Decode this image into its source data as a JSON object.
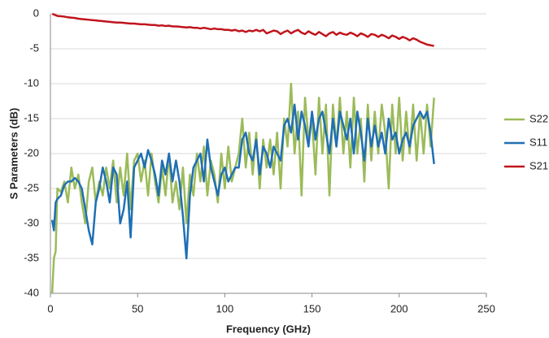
{
  "chart_data": {
    "type": "line",
    "xlabel": "Frequency (GHz)",
    "ylabel": "S Parameters (dB)",
    "x": [
      1,
      2,
      3,
      4,
      6,
      8,
      10,
      12,
      14,
      16,
      18,
      20,
      22,
      24,
      26,
      28,
      30,
      32,
      34,
      36,
      38,
      40,
      42,
      44,
      46,
      48,
      50,
      52,
      54,
      56,
      58,
      60,
      62,
      64,
      66,
      68,
      70,
      72,
      74,
      76,
      78,
      80,
      82,
      84,
      86,
      88,
      90,
      92,
      94,
      96,
      98,
      100,
      102,
      104,
      106,
      108,
      110,
      112,
      114,
      116,
      118,
      120,
      122,
      124,
      126,
      128,
      130,
      132,
      134,
      136,
      138,
      140,
      142,
      144,
      146,
      148,
      150,
      152,
      154,
      156,
      158,
      160,
      162,
      164,
      166,
      168,
      170,
      172,
      174,
      176,
      178,
      180,
      182,
      184,
      186,
      188,
      190,
      192,
      194,
      196,
      198,
      200,
      202,
      204,
      206,
      208,
      210,
      212,
      214,
      216,
      218,
      220
    ],
    "series": [
      {
        "name": "S22",
        "color": "#9bbb59",
        "values": [
          -40,
          -35,
          -34,
          -25,
          -25.5,
          -24,
          -27,
          -22,
          -25,
          -23,
          -27,
          -30,
          -24,
          -22,
          -27,
          -24,
          -26,
          -22,
          -25,
          -21,
          -27,
          -22,
          -26,
          -20,
          -28,
          -21,
          -20,
          -24,
          -21,
          -26,
          -20,
          -24,
          -27,
          -22,
          -26,
          -20,
          -27,
          -24,
          -28,
          -22,
          -30,
          -23,
          -26,
          -20,
          -24,
          -19,
          -26,
          -21,
          -23,
          -27,
          -20,
          -25,
          -19,
          -24,
          -22,
          -20,
          -15,
          -22,
          -17,
          -23,
          -17,
          -25,
          -18,
          -22,
          -18,
          -23,
          -17,
          -25,
          -15,
          -19,
          -10,
          -20,
          -14,
          -26,
          -12,
          -18,
          -15,
          -23,
          -12,
          -20,
          -13,
          -26,
          -13,
          -19,
          -12,
          -20,
          -14,
          -22,
          -12,
          -20,
          -15,
          -24,
          -13,
          -21,
          -14,
          -20,
          -13,
          -17,
          -25,
          -13,
          -20,
          -12,
          -21,
          -14,
          -20,
          -13,
          -21,
          -14,
          -20,
          -13,
          -19,
          -12
        ]
      },
      {
        "name": "S11",
        "color": "#1f6fb4",
        "values": [
          -29.5,
          -31,
          -27,
          -26.5,
          -26,
          -24.5,
          -24,
          -24,
          -23.5,
          -24,
          -25,
          -28,
          -31,
          -33,
          -27,
          -25,
          -22,
          -24,
          -27,
          -22,
          -23,
          -30,
          -28,
          -24,
          -32,
          -22,
          -21,
          -20,
          -22,
          -19.5,
          -21,
          -23,
          -26,
          -21,
          -23,
          -20,
          -24,
          -21,
          -24,
          -29,
          -35,
          -26,
          -22,
          -21,
          -20,
          -24,
          -18,
          -22,
          -24,
          -26,
          -23,
          -22,
          -24,
          -23,
          -22,
          -22,
          -18,
          -17,
          -20,
          -21,
          -18,
          -23,
          -19,
          -20,
          -22,
          -19,
          -20,
          -21,
          -16,
          -15,
          -17,
          -13,
          -18,
          -14,
          -16,
          -19,
          -14,
          -18,
          -15,
          -14,
          -17,
          -20,
          -15,
          -19,
          -14,
          -16,
          -18,
          -15,
          -20,
          -14,
          -17,
          -21,
          -15,
          -19,
          -16,
          -19,
          -17,
          -20,
          -15,
          -18,
          -17,
          -20,
          -18,
          -17,
          -19,
          -16,
          -15,
          -14,
          -15,
          -14,
          -17,
          -21.5
        ]
      },
      {
        "name": "S21",
        "color": "#c0141c",
        "values": [
          0,
          -0.1,
          -0.2,
          -0.3,
          -0.35,
          -0.4,
          -0.5,
          -0.55,
          -0.6,
          -0.7,
          -0.75,
          -0.8,
          -0.85,
          -0.9,
          -0.95,
          -1.0,
          -1.05,
          -1.1,
          -1.15,
          -1.2,
          -1.25,
          -1.25,
          -1.3,
          -1.35,
          -1.4,
          -1.4,
          -1.45,
          -1.5,
          -1.5,
          -1.55,
          -1.6,
          -1.6,
          -1.7,
          -1.65,
          -1.75,
          -1.7,
          -1.8,
          -1.8,
          -1.85,
          -1.9,
          -1.95,
          -1.9,
          -2.0,
          -2.0,
          -2.1,
          -2.0,
          -2.1,
          -2.2,
          -2.1,
          -2.2,
          -2.2,
          -2.3,
          -2.3,
          -2.4,
          -2.3,
          -2.5,
          -2.4,
          -2.6,
          -2.4,
          -2.5,
          -2.3,
          -2.5,
          -2.3,
          -2.8,
          -2.6,
          -2.4,
          -2.5,
          -2.9,
          -2.6,
          -2.4,
          -2.8,
          -2.5,
          -2.3,
          -2.7,
          -2.9,
          -2.5,
          -2.8,
          -3.0,
          -2.6,
          -2.9,
          -3.2,
          -2.8,
          -2.6,
          -3.0,
          -2.7,
          -2.9,
          -3.0,
          -2.7,
          -2.9,
          -3.2,
          -2.8,
          -3.0,
          -3.3,
          -2.9,
          -3.0,
          -3.3,
          -3.0,
          -3.2,
          -3.5,
          -3.1,
          -3.3,
          -3.6,
          -3.3,
          -3.5,
          -3.8,
          -3.5,
          -3.7,
          -4.0,
          -4.2,
          -4.4,
          -4.5,
          -4.6
        ]
      }
    ],
    "xlim": [
      0,
      250
    ],
    "xticks": [
      0,
      50,
      100,
      150,
      200,
      250
    ],
    "ylim": [
      -40,
      0
    ],
    "yticks": [
      -40,
      -35,
      -30,
      -25,
      -20,
      -15,
      -10,
      -5,
      0
    ],
    "grid": true,
    "legend": "right"
  }
}
